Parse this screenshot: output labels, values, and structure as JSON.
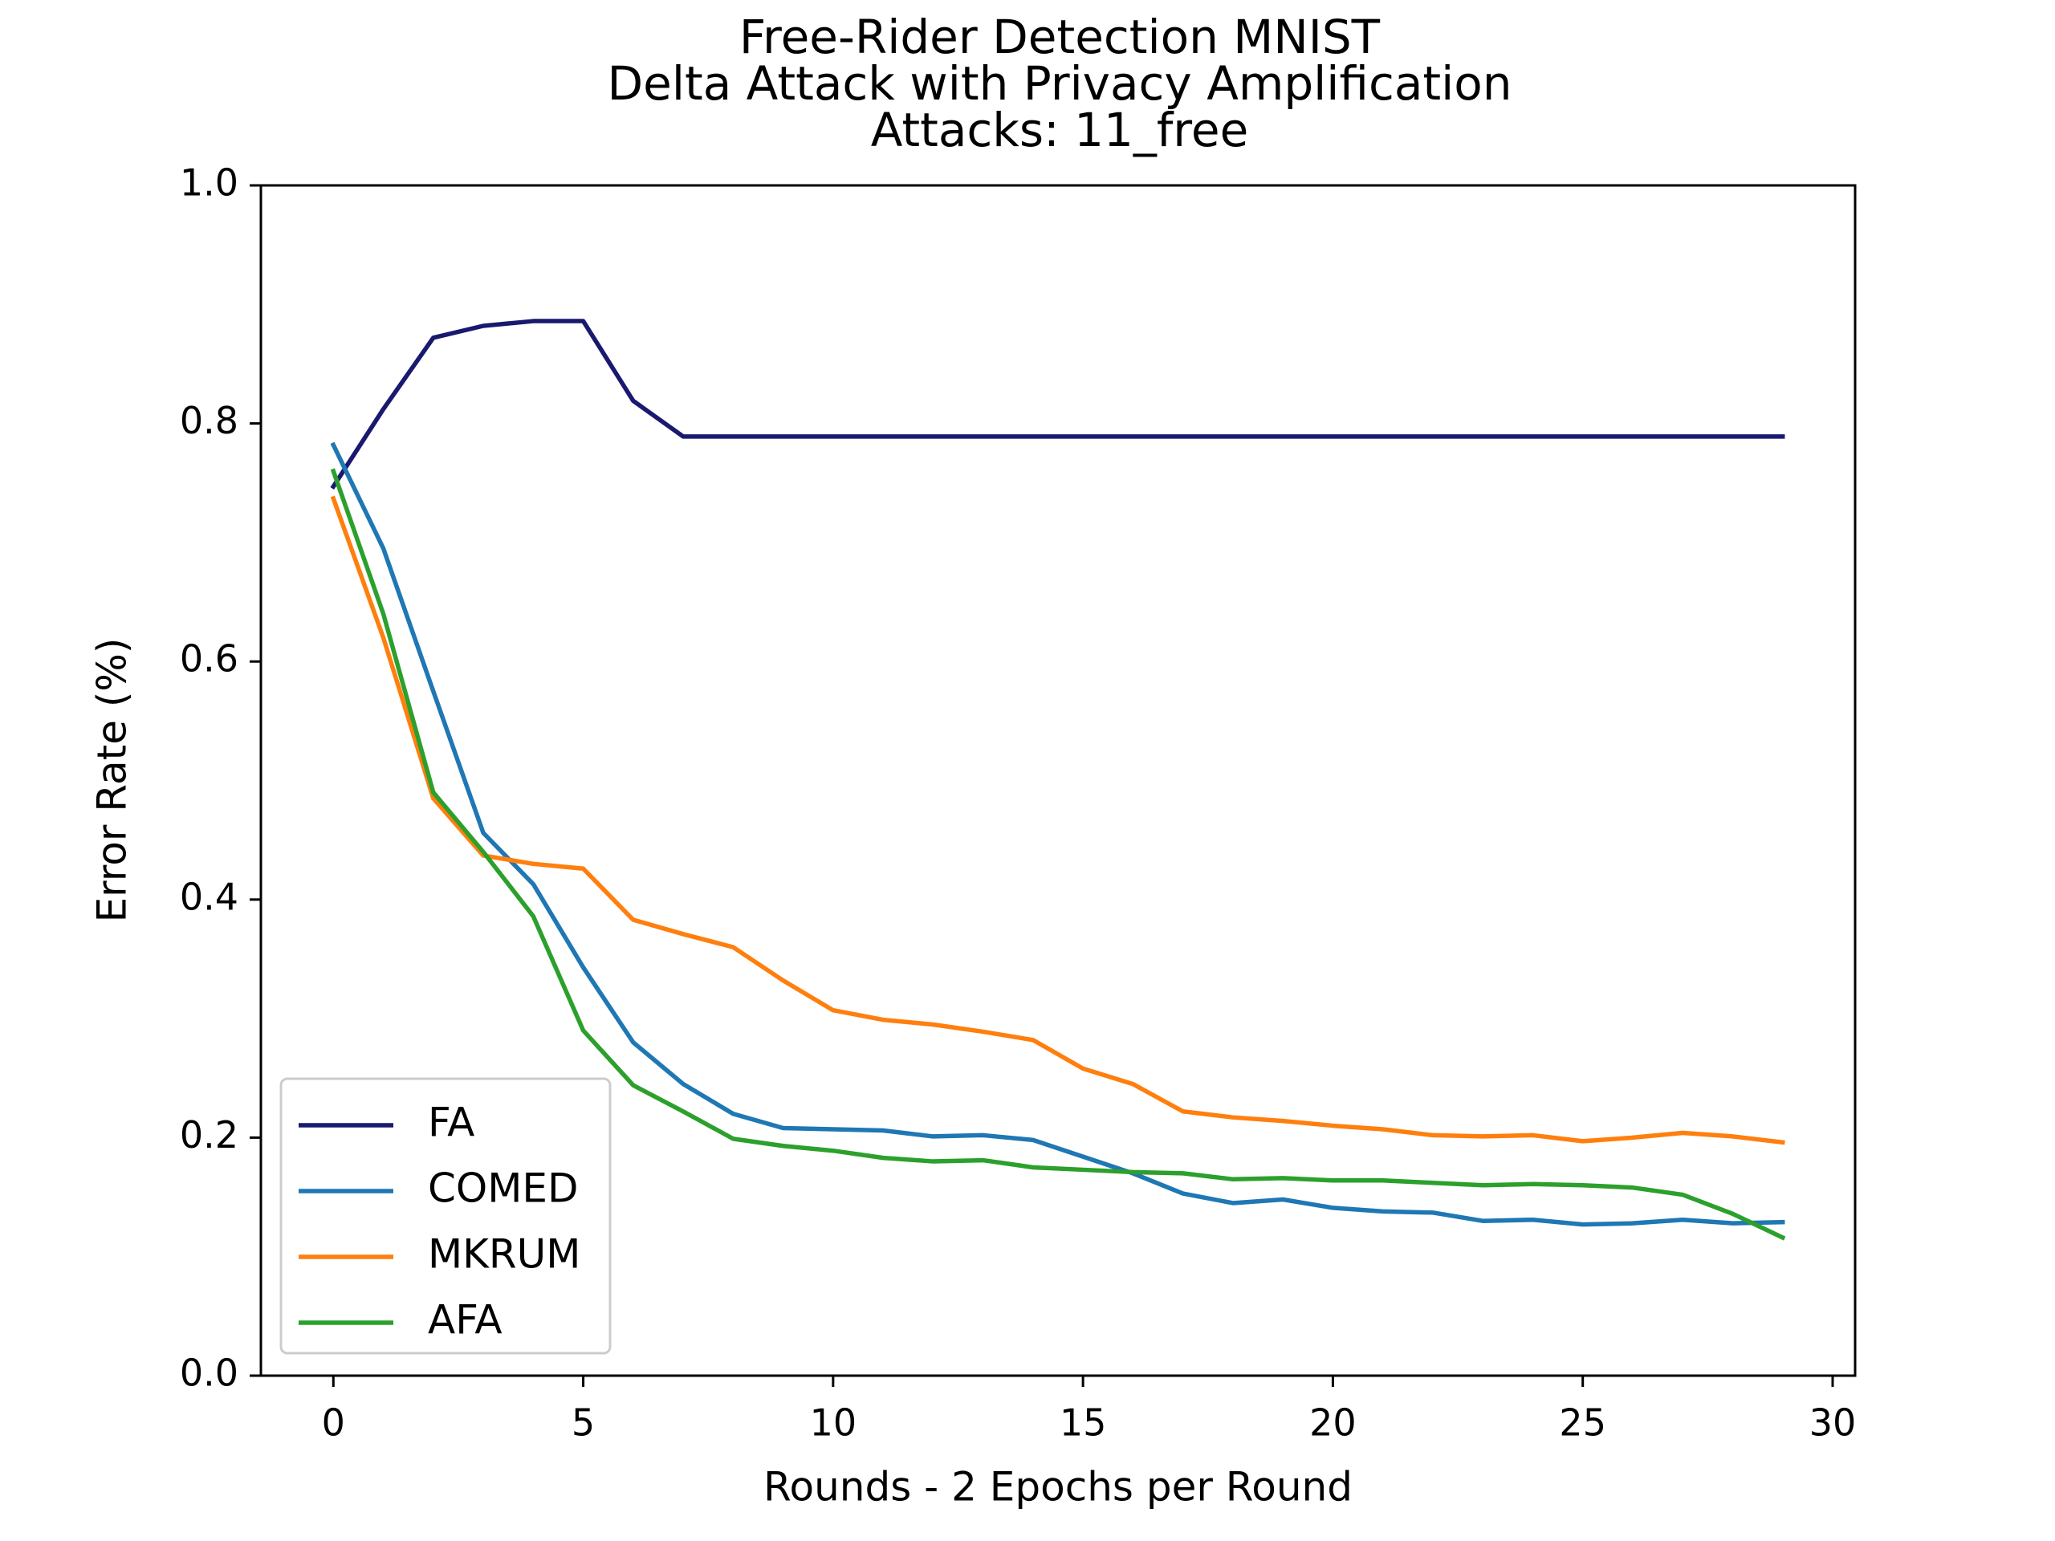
{
  "chart_data": {
    "type": "line",
    "title_lines": [
      "Free-Rider Detection MNIST",
      "Delta Attack with Privacy Amplification",
      "Attacks: 11_free"
    ],
    "xlabel": "Rounds - 2 Epochs per Round",
    "ylabel": "Error Rate (%)",
    "xlim": [
      -1.45,
      30.45
    ],
    "ylim": [
      0.0,
      1.0
    ],
    "xticks": [
      0,
      5,
      10,
      15,
      20,
      25,
      30
    ],
    "xtick_labels": [
      "0",
      "5",
      "10",
      "15",
      "20",
      "25",
      "30"
    ],
    "yticks": [
      0.0,
      0.2,
      0.4,
      0.6,
      0.8,
      1.0
    ],
    "ytick_labels": [
      "0.0",
      "0.2",
      "0.4",
      "0.6",
      "0.8",
      "1.0"
    ],
    "grid": false,
    "legend_position": "lower-left",
    "x": [
      0,
      1,
      2,
      3,
      4,
      5,
      6,
      7,
      8,
      9,
      10,
      11,
      12,
      13,
      14,
      15,
      16,
      17,
      18,
      19,
      20,
      21,
      22,
      23,
      24,
      25,
      26,
      27,
      28,
      29
    ],
    "series": [
      {
        "name": "FA",
        "color": "#191970",
        "values": [
          0.747,
          0.812,
          0.872,
          0.882,
          0.886,
          0.886,
          0.819,
          0.789,
          0.789,
          0.789,
          0.789,
          0.789,
          0.789,
          0.789,
          0.789,
          0.789,
          0.789,
          0.789,
          0.789,
          0.789,
          0.789,
          0.789,
          0.789,
          0.789,
          0.789,
          0.789,
          0.789,
          0.789,
          0.789,
          0.789
        ]
      },
      {
        "name": "COMED",
        "color": "#1f77b4",
        "values": [
          0.782,
          0.695,
          0.575,
          0.456,
          0.413,
          0.343,
          0.28,
          0.245,
          0.22,
          0.208,
          0.207,
          0.206,
          0.201,
          0.202,
          0.198,
          0.184,
          0.17,
          0.153,
          0.145,
          0.148,
          0.141,
          0.138,
          0.137,
          0.13,
          0.131,
          0.127,
          0.128,
          0.131,
          0.128,
          0.129
        ]
      },
      {
        "name": "MKRUM",
        "color": "#ff7f0e",
        "values": [
          0.737,
          0.62,
          0.485,
          0.437,
          0.43,
          0.426,
          0.383,
          0.371,
          0.36,
          0.332,
          0.307,
          0.299,
          0.295,
          0.289,
          0.282,
          0.258,
          0.245,
          0.222,
          0.217,
          0.214,
          0.21,
          0.207,
          0.202,
          0.201,
          0.202,
          0.197,
          0.2,
          0.204,
          0.201,
          0.196
        ]
      },
      {
        "name": "AFA",
        "color": "#2ca02c",
        "values": [
          0.76,
          0.64,
          0.49,
          0.44,
          0.386,
          0.29,
          0.244,
          0.222,
          0.199,
          0.193,
          0.189,
          0.183,
          0.18,
          0.181,
          0.175,
          0.173,
          0.171,
          0.17,
          0.165,
          0.166,
          0.164,
          0.164,
          0.162,
          0.16,
          0.161,
          0.16,
          0.158,
          0.152,
          0.136,
          0.116
        ]
      }
    ]
  }
}
